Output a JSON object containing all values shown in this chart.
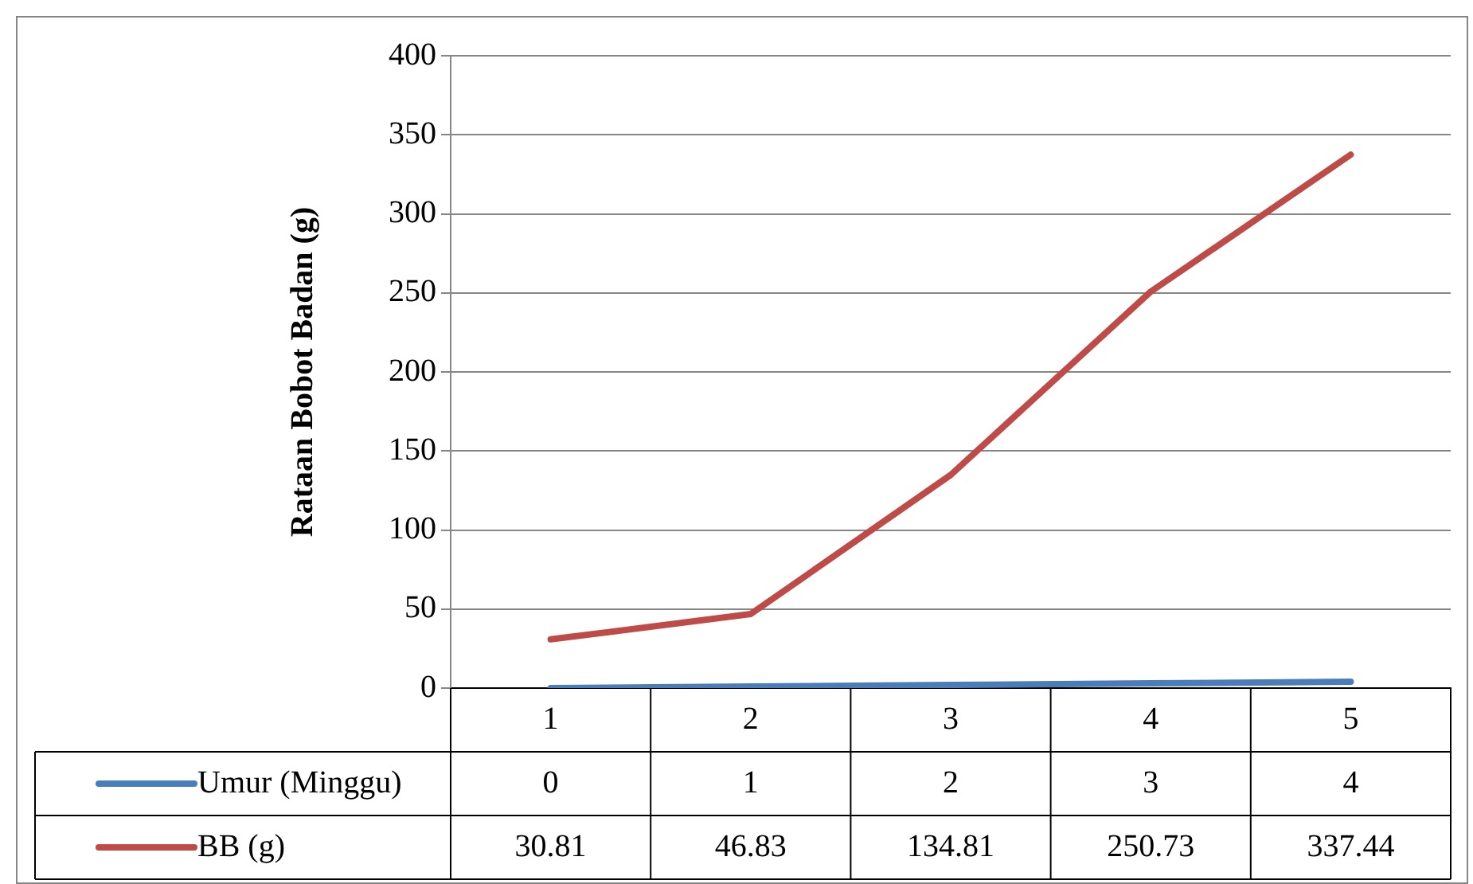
{
  "chart_data": {
    "type": "line",
    "ylabel": "Rataan Bobot Badan (g)",
    "categories": [
      "1",
      "2",
      "3",
      "4",
      "5"
    ],
    "series": [
      {
        "name": "Umur (Minggu)",
        "color": "#4a7ebb",
        "values": [
          0,
          1,
          2,
          3,
          4
        ]
      },
      {
        "name": "BB (g)",
        "color": "#be4b48",
        "values": [
          30.81,
          46.83,
          134.81,
          250.73,
          337.44
        ]
      }
    ],
    "ylim": [
      0,
      400
    ],
    "yticks": [
      0,
      50,
      100,
      150,
      200,
      250,
      300,
      350,
      400
    ],
    "grid": "y",
    "legend": "bottom",
    "data_labels": true,
    "marker": "none",
    "line_style": "solid"
  }
}
